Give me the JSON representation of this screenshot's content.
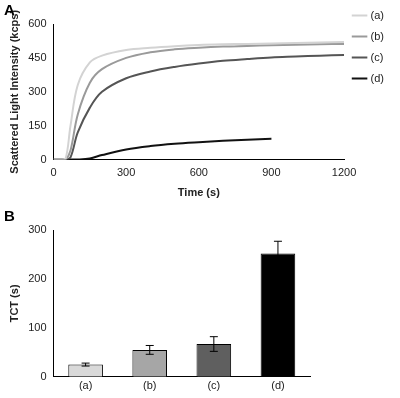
{
  "chart_data": [
    {
      "type": "line",
      "title": "A",
      "x_label": "Time (s)",
      "y_label": "Scattered Light Intensity (kcps)",
      "x": [
        0,
        30,
        50,
        70,
        100,
        150,
        200,
        300,
        400,
        500,
        600,
        700,
        800,
        900,
        1000,
        1100,
        1200
      ],
      "series": [
        {
          "name": "(a)",
          "color": "#d3d3d3",
          "values": [
            0,
            0,
            5,
            150,
            330,
            430,
            460,
            485,
            495,
            502,
            507,
            510,
            512,
            514,
            516,
            518,
            520
          ]
        },
        {
          "name": "(b)",
          "color": "#9a9a9a",
          "values": [
            0,
            0,
            0,
            40,
            200,
            340,
            400,
            450,
            475,
            488,
            495,
            500,
            503,
            506,
            508,
            510,
            512
          ]
        },
        {
          "name": "(c)",
          "color": "#555555",
          "values": [
            0,
            0,
            0,
            10,
            120,
            230,
            300,
            360,
            390,
            410,
            425,
            437,
            445,
            452,
            456,
            460,
            463
          ]
        },
        {
          "name": "(d)",
          "color": "#111111",
          "values": [
            0,
            0,
            0,
            0,
            0,
            5,
            20,
            45,
            60,
            70,
            77,
            83,
            88,
            92,
            null,
            null,
            null
          ]
        }
      ],
      "xlim": [
        0,
        1200
      ],
      "xticks": [
        0,
        300,
        600,
        900,
        1200
      ],
      "ylim": [
        0,
        600
      ],
      "yticks": [
        0,
        150,
        300,
        450,
        600
      ],
      "grid": false,
      "legend": "right"
    },
    {
      "type": "bar",
      "title": "B",
      "y_label": "TCT (s)",
      "categories": [
        "(a)",
        "(b)",
        "(c)",
        "(d)"
      ],
      "values": [
        25,
        55,
        67,
        252
      ],
      "errors": [
        3,
        9,
        15,
        25
      ],
      "colors": [
        "#d9d9d9",
        "#a6a6a6",
        "#5f5f5f",
        "#000000"
      ],
      "ylim": [
        0,
        300
      ],
      "yticks": [
        0,
        100,
        200,
        300
      ],
      "grid": false
    }
  ]
}
